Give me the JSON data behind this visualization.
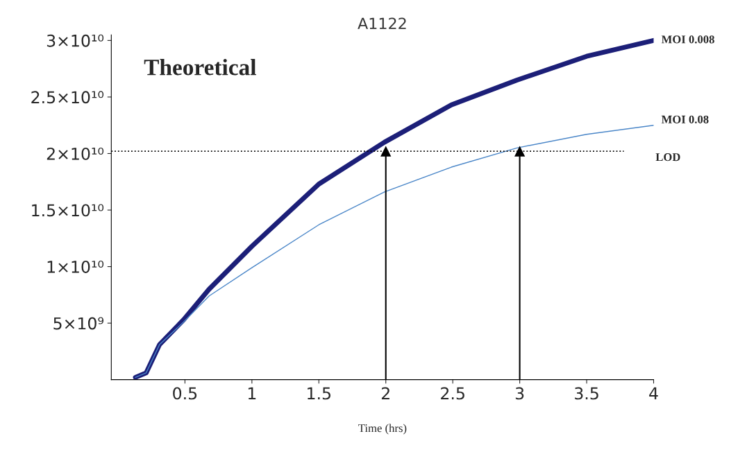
{
  "chart_data": {
    "type": "line",
    "title": "A1122",
    "xlabel": "Time (hrs)",
    "annotations": [
      "Theoretical"
    ],
    "xlim": [
      -0.05,
      4.0
    ],
    "xticks": [
      0.5,
      1,
      1.5,
      2,
      2.5,
      3,
      3.5,
      4
    ],
    "ylim": [
      0,
      30500000000.0
    ],
    "yticks": [
      {
        "value": 5000000000.0,
        "label": "5×10⁹"
      },
      {
        "value": 10000000000.0,
        "label": "1×10¹⁰"
      },
      {
        "value": 15000000000.0,
        "label": "1.5×10¹⁰"
      },
      {
        "value": 20000000000.0,
        "label": "2×10¹⁰"
      },
      {
        "value": 25000000000.0,
        "label": "2.5×10¹⁰"
      },
      {
        "value": 30000000000.0,
        "label": "3×10¹⁰"
      }
    ],
    "series": [
      {
        "name": "MOI 0.008",
        "color": "#1c1f78",
        "x": [
          0.13,
          0.21,
          0.31,
          0.49,
          0.68,
          1.0,
          1.5,
          1.99,
          2.49,
          2.98,
          3.5,
          4.0
        ],
        "values": [
          200000000.0,
          600000000.0,
          3100000000.0,
          5300000000.0,
          8000000000.0,
          11800000000.0,
          17300000000.0,
          21000000000.0,
          24300000000.0,
          26500000000.0,
          28600000000.0,
          30000000000.0
        ]
      },
      {
        "name": "MOI 0.08",
        "color": "#4a86c8",
        "x": [
          0.13,
          0.21,
          0.31,
          0.49,
          0.68,
          1.0,
          1.5,
          1.99,
          2.49,
          2.98,
          3.5,
          4.0
        ],
        "values": [
          200000000.0,
          600000000.0,
          3100000000.0,
          5100000000.0,
          7400000000.0,
          9900000000.0,
          13700000000.0,
          16600000000.0,
          18800000000.0,
          20500000000.0,
          21700000000.0,
          22500000000.0
        ]
      }
    ],
    "ref_lines": [
      {
        "axis": "y",
        "value": 20200000000.0,
        "label": "LOD",
        "color": "#000000",
        "line_style": "dotted"
      },
      {
        "axis": "x",
        "value": 2,
        "label": null,
        "color": "#000000"
      },
      {
        "axis": "x",
        "value": 3,
        "label": null,
        "color": "#000000"
      }
    ],
    "grid": false,
    "legend": false
  }
}
